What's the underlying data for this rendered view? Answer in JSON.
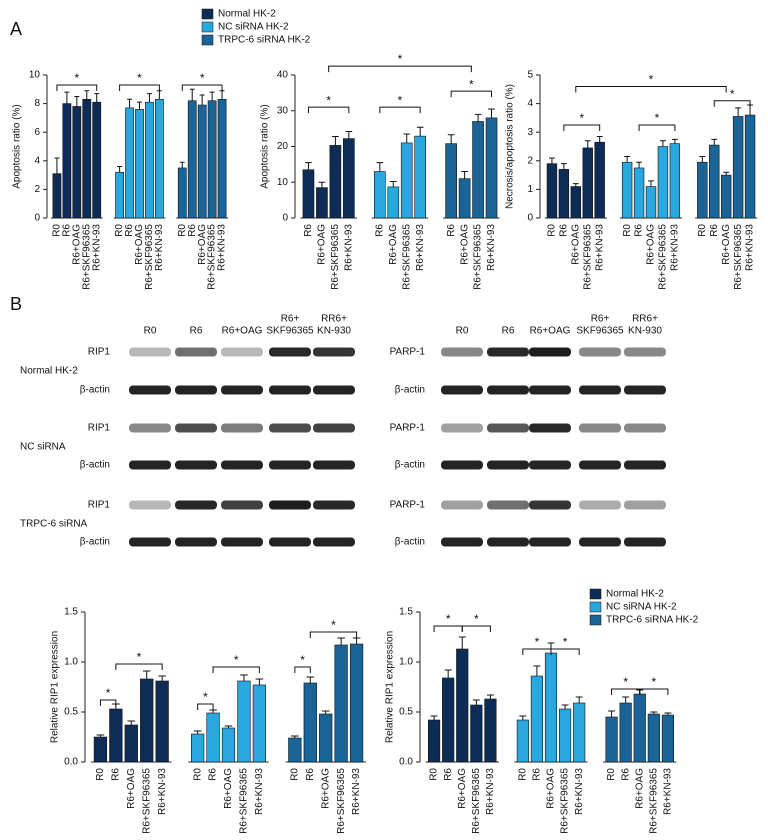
{
  "panel_labels": [
    "A",
    "B"
  ],
  "chart_data": [
    {
      "type": "bar",
      "ylabel": "Apoptosis ratio (%)",
      "categories": [
        "R0",
        "R6",
        "R6+OAG",
        "R6+SKF96365",
        "R6+KN-93"
      ],
      "ylim": [
        0,
        10
      ],
      "yticks": [
        0,
        2,
        4,
        6,
        8,
        10
      ],
      "series": [
        {
          "name": "Normal HK-2",
          "color": "#0d2d56",
          "values": [
            3.1,
            8.0,
            7.8,
            8.3,
            8.1
          ],
          "errors": [
            1.1,
            0.8,
            0.7,
            0.6,
            0.6
          ]
        },
        {
          "name": "NC siRNA HK-2",
          "color": "#29a8df",
          "values": [
            3.2,
            7.7,
            7.6,
            8.1,
            8.3
          ],
          "errors": [
            0.4,
            0.6,
            0.5,
            0.6,
            0.6
          ]
        },
        {
          "name": "TRPC-6 siRNA HK-2",
          "color": "#1a6497",
          "values": [
            3.5,
            8.2,
            7.9,
            8.2,
            8.3
          ],
          "errors": [
            0.4,
            0.8,
            0.7,
            0.6,
            0.6
          ]
        }
      ],
      "annotations": [
        "*",
        "*",
        "*"
      ]
    },
    {
      "type": "bar",
      "ylabel": "Apoptosis ratio (%)",
      "categories": [
        "R6",
        "R6+OAG",
        "R6+SKF96365",
        "R6+KN-93"
      ],
      "ylim": [
        0,
        40
      ],
      "yticks": [
        0,
        10,
        20,
        30,
        40
      ],
      "series": [
        {
          "color": "#0d2d56",
          "values": [
            13.5,
            8.5,
            20.3,
            22.2
          ],
          "errors": [
            2,
            1.5,
            2.5,
            2
          ]
        },
        {
          "color": "#29a8df",
          "values": [
            13,
            8.7,
            21,
            22.9
          ],
          "errors": [
            2.5,
            1.5,
            2.5,
            2.5
          ]
        },
        {
          "color": "#1a6497",
          "values": [
            20.8,
            11,
            27,
            28
          ],
          "errors": [
            2.5,
            2,
            2,
            2.5
          ]
        }
      ],
      "annotations": [
        "*",
        "*",
        "*",
        "*"
      ]
    },
    {
      "type": "bar",
      "ylabel": "Necrosis/apoptosis ratio (%)",
      "categories": [
        "R0",
        "R6",
        "R6+OAG",
        "R6+SKF96365",
        "R6+KN-93"
      ],
      "ylim": [
        0,
        5
      ],
      "yticks": [
        0,
        1,
        2,
        3,
        4,
        5
      ],
      "series": [
        {
          "color": "#0d2d56",
          "values": [
            1.9,
            1.7,
            1.1,
            2.45,
            2.65
          ],
          "errors": [
            0.2,
            0.2,
            0.1,
            0.25,
            0.2
          ]
        },
        {
          "color": "#29a8df",
          "values": [
            1.95,
            1.75,
            1.1,
            2.5,
            2.6
          ],
          "errors": [
            0.2,
            0.2,
            0.2,
            0.2,
            0.15
          ]
        },
        {
          "color": "#1a6497",
          "values": [
            1.95,
            2.55,
            1.5,
            3.55,
            3.6
          ],
          "errors": [
            0.2,
            0.2,
            0.1,
            0.3,
            0.35
          ]
        }
      ],
      "annotations": [
        "*",
        "*",
        "*",
        "*"
      ]
    },
    {
      "type": "bar",
      "ylabel": "Relative RIP1 expression",
      "categories": [
        "R0",
        "R6",
        "R6+OAG",
        "R6+SKF96365",
        "R6+KN-93"
      ],
      "ylim": [
        0,
        1.5
      ],
      "yticks": [
        {
          "value": 0,
          "label": "0.0"
        },
        0.5,
        {
          "value": 1,
          "label": "1.0"
        },
        1.5
      ],
      "series": [
        {
          "color": "#0d2d56",
          "values": [
            0.25,
            0.53,
            0.37,
            0.83,
            0.81
          ],
          "errors": [
            0.02,
            0.05,
            0.04,
            0.08,
            0.05
          ]
        },
        {
          "color": "#29a8df",
          "values": [
            0.28,
            0.49,
            0.34,
            0.81,
            0.77
          ],
          "errors": [
            0.03,
            0.03,
            0.02,
            0.06,
            0.06
          ]
        },
        {
          "color": "#1a6497",
          "values": [
            0.24,
            0.79,
            0.48,
            1.17,
            1.18
          ],
          "errors": [
            0.02,
            0.06,
            0.03,
            0.07,
            0.06
          ]
        }
      ],
      "annotations": [
        "*",
        "*",
        "*",
        "*",
        "*",
        "*"
      ]
    },
    {
      "type": "bar",
      "ylabel": "Relative RIP1 expression",
      "categories": [
        "R0",
        "R6",
        "R6+OAG",
        "R6+SKF96365",
        "R6+KN-93"
      ],
      "ylim": [
        0,
        1.5
      ],
      "yticks": [
        {
          "value": 0,
          "label": "0.0"
        },
        0.5,
        {
          "value": 1,
          "label": "1.0"
        },
        1.5
      ],
      "series": [
        {
          "name": "Normal HK-2",
          "color": "#0d2d56",
          "values": [
            0.42,
            0.84,
            1.13,
            0.57,
            0.63
          ],
          "errors": [
            0.04,
            0.08,
            0.12,
            0.05,
            0.04
          ]
        },
        {
          "name": "NC siRNA HK-2",
          "color": "#29a8df",
          "values": [
            0.42,
            0.86,
            1.09,
            0.53,
            0.59
          ],
          "errors": [
            0.04,
            0.1,
            0.1,
            0.04,
            0.06
          ]
        },
        {
          "name": "TRPC-6 siRNA HK-2",
          "color": "#1a6497",
          "values": [
            0.45,
            0.59,
            0.68,
            0.48,
            0.47
          ],
          "errors": [
            0.06,
            0.06,
            0.04,
            0.02,
            0.02
          ]
        }
      ],
      "annotations": [
        "*",
        "*",
        "*",
        "*",
        "*",
        "*"
      ]
    }
  ],
  "blots": {
    "groups": [
      "Normal HK-2",
      "NC siRNA",
      "TRPC-6 siRNA"
    ],
    "panels": [
      {
        "columns": [
          [
            "R0"
          ],
          [
            "R6"
          ],
          [
            "R6+OAG"
          ],
          [
            "R6+",
            "SKF96365"
          ],
          [
            "RR6+",
            "KN-930"
          ]
        ],
        "proteins": [
          "RIP1",
          "β-actin"
        ]
      },
      {
        "columns": [
          [
            "R0"
          ],
          [
            "R6"
          ],
          [
            "R6+OAG"
          ],
          [
            "R6+",
            "SKF96365"
          ],
          [
            "RR6+",
            "KN-930"
          ]
        ],
        "proteins": [
          "PARP-1",
          "β-actin"
        ]
      }
    ]
  }
}
